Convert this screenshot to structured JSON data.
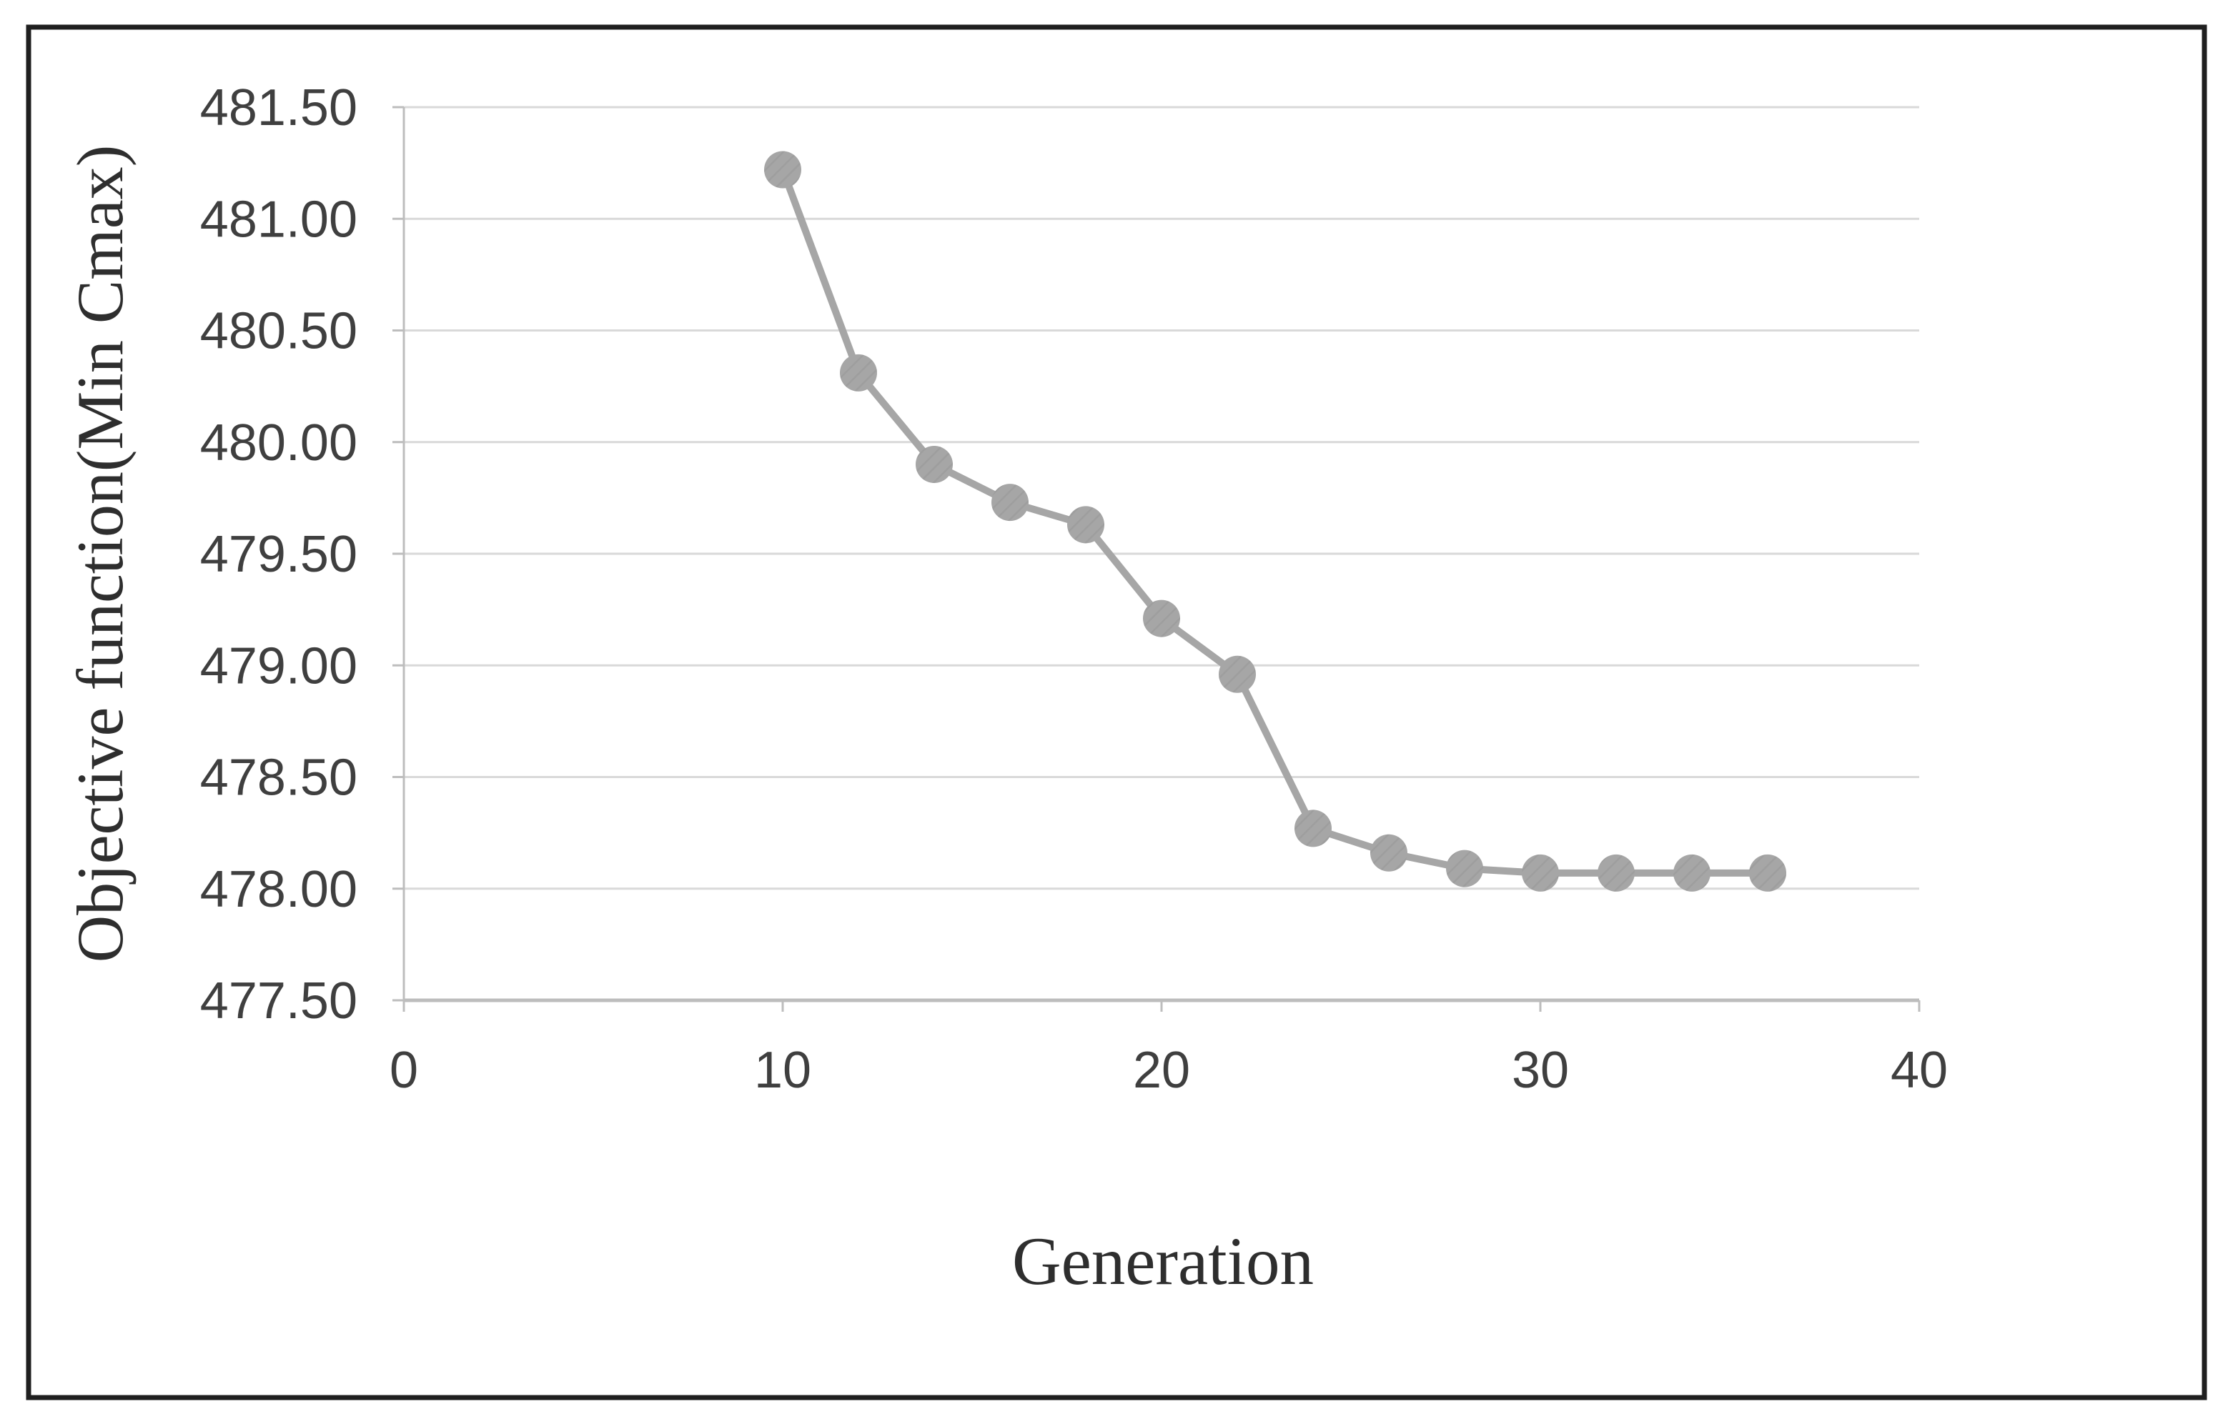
{
  "figure": {
    "background": "#ffffff",
    "border_color": "#1f1f1f"
  },
  "chart_data": {
    "type": "line",
    "title": "",
    "xlabel": "Generation",
    "ylabel": "Objective function(Min Cmax)",
    "series": [
      {
        "name": "Objective function (Min Cmax)",
        "x": [
          10,
          12,
          14,
          16,
          18,
          20,
          22,
          24,
          26,
          28,
          30,
          32,
          34,
          36
        ],
        "y": [
          481.22,
          480.31,
          479.9,
          479.73,
          479.63,
          479.21,
          478.96,
          478.27,
          478.16,
          478.09,
          478.07,
          478.07,
          478.07,
          478.07
        ]
      }
    ],
    "xlim": [
      0,
      40
    ],
    "ylim": [
      477.5,
      481.5
    ],
    "x_ticks": [
      0,
      10,
      20,
      30,
      40
    ],
    "y_ticks": [
      481.5,
      481.0,
      480.5,
      480.0,
      479.5,
      479.0,
      478.5,
      478.0,
      477.5
    ],
    "y_tick_decimals": 2,
    "x_tick_decimals": 0,
    "grid": true,
    "legend": false,
    "line_color": "#a6a6a6",
    "marker_color": "#a6a6a6",
    "marker_hatch_color": "#8f8f8f",
    "gridline_color": "#d9d9d9",
    "axis_line_color": "#bdbdbd",
    "tick_label_color": "#3f3f3f",
    "axis_title_color": "#2e2e2e"
  }
}
